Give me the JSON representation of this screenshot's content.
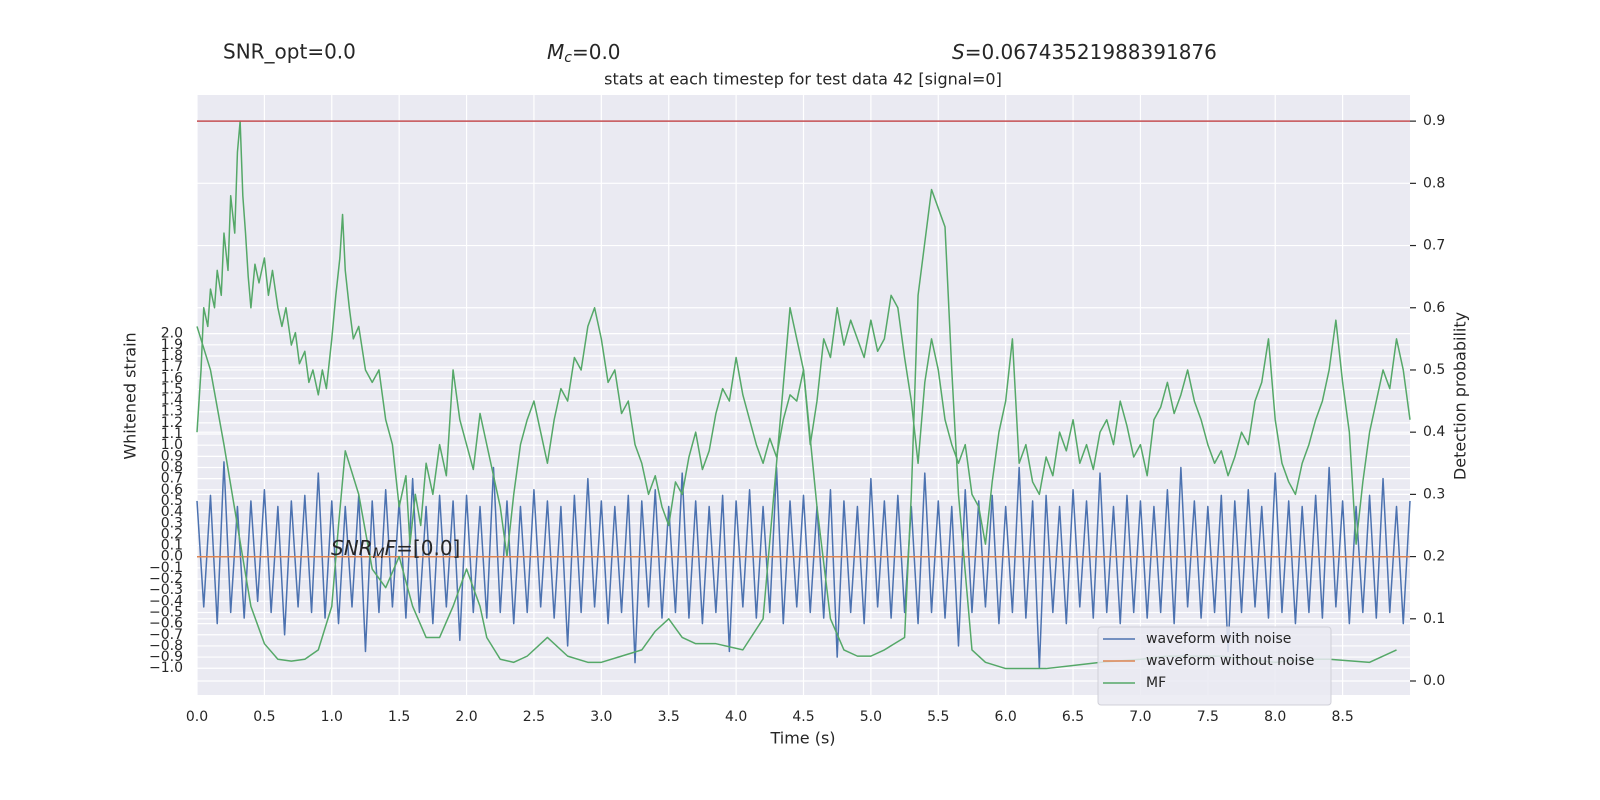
{
  "chart_data": {
    "type": "line",
    "title": "stats at each timestep for test data 42 [signal=0]",
    "annotations": {
      "snr_opt": "SNR_opt=0.0",
      "mc": {
        "italic": "M",
        "sub": "c",
        "text": "=0.0"
      },
      "s": {
        "italic": "S",
        "text": "=0.06743521988391876"
      },
      "snr_mf": {
        "italic": "SNR",
        "sub": "M",
        "italic2": "F",
        "text": "=[0.0]"
      }
    },
    "xlabel": "Time (s)",
    "ylabel": "Whitened strain",
    "y2label": "Detection probability",
    "xlim": [
      0,
      9.0
    ],
    "ylim": [
      -1.24,
      4.14
    ],
    "y2lim": [
      -0.0225,
      0.942
    ],
    "xticks": [
      {
        "value": 0,
        "label": "0.0"
      },
      {
        "value": 0.5,
        "label": "0.5"
      },
      {
        "value": 1,
        "label": "1.0"
      },
      {
        "value": 1.5,
        "label": "1.5"
      },
      {
        "value": 2,
        "label": "2.0"
      },
      {
        "value": 2.5,
        "label": "2.5"
      },
      {
        "value": 3,
        "label": "3.0"
      },
      {
        "value": 3.5,
        "label": "3.5"
      },
      {
        "value": 4,
        "label": "4.0"
      },
      {
        "value": 4.5,
        "label": "4.5"
      },
      {
        "value": 5,
        "label": "5.0"
      },
      {
        "value": 5.5,
        "label": "5.5"
      },
      {
        "value": 6,
        "label": "6.0"
      },
      {
        "value": 6.5,
        "label": "6.5"
      },
      {
        "value": 7,
        "label": "7.0"
      },
      {
        "value": 7.5,
        "label": "7.5"
      },
      {
        "value": 8,
        "label": "8.0"
      },
      {
        "value": 8.5,
        "label": "8.5"
      }
    ],
    "yticks": [
      {
        "value": -1.0,
        "label": "−1.0"
      },
      {
        "value": -0.9,
        "label": "−0.9"
      },
      {
        "value": -0.8,
        "label": "−0.8"
      },
      {
        "value": -0.7,
        "label": "−0.7"
      },
      {
        "value": -0.6,
        "label": "−0.6"
      },
      {
        "value": -0.5,
        "label": "−0.5"
      },
      {
        "value": -0.4,
        "label": "−0.4"
      },
      {
        "value": -0.3,
        "label": "−0.3"
      },
      {
        "value": -0.2,
        "label": "−0.2"
      },
      {
        "value": -0.1,
        "label": "−0.1"
      },
      {
        "value": 0,
        "label": "0.0"
      },
      {
        "value": 0.1,
        "label": "0.1"
      },
      {
        "value": 0.2,
        "label": "0.2"
      },
      {
        "value": 0.3,
        "label": "0.3"
      },
      {
        "value": 0.4,
        "label": "0.4"
      },
      {
        "value": 0.5,
        "label": "0.5"
      },
      {
        "value": 0.6,
        "label": "0.6"
      },
      {
        "value": 0.7,
        "label": "0.7"
      },
      {
        "value": 0.8,
        "label": "0.8"
      },
      {
        "value": 0.9,
        "label": "0.9"
      },
      {
        "value": 1.0,
        "label": "1.0"
      },
      {
        "value": 1.1,
        "label": "1.1"
      },
      {
        "value": 1.2,
        "label": "1.2"
      },
      {
        "value": 1.3,
        "label": "1.3"
      },
      {
        "value": 1.4,
        "label": "1.4"
      },
      {
        "value": 1.5,
        "label": "1.5"
      },
      {
        "value": 1.6,
        "label": "1.6"
      },
      {
        "value": 1.7,
        "label": "1.7"
      },
      {
        "value": 1.8,
        "label": "1.8"
      },
      {
        "value": 1.9,
        "label": "1.9"
      },
      {
        "value": 2.0,
        "label": "2.0"
      }
    ],
    "y2ticks": [
      {
        "value": 0,
        "label": "0.0"
      },
      {
        "value": 0.1,
        "label": "0.1"
      },
      {
        "value": 0.2,
        "label": "0.2"
      },
      {
        "value": 0.3,
        "label": "0.3"
      },
      {
        "value": 0.4,
        "label": "0.4"
      },
      {
        "value": 0.5,
        "label": "0.5"
      },
      {
        "value": 0.6,
        "label": "0.6"
      },
      {
        "value": 0.7,
        "label": "0.7"
      },
      {
        "value": 0.8,
        "label": "0.8"
      },
      {
        "value": 0.9,
        "label": "0.9"
      }
    ],
    "grid": true,
    "legend": "lower right",
    "threshold": {
      "value": 0.9,
      "color": "#c44e52",
      "axis": "y2"
    },
    "series": [
      {
        "name": "waveform with noise",
        "color": "#4c72b0",
        "axis": "y",
        "x": [
          0,
          0.05,
          0.1,
          0.15,
          0.2,
          0.25,
          0.3,
          0.35,
          0.4,
          0.45,
          0.5,
          0.55,
          0.6,
          0.65,
          0.7,
          0.75,
          0.8,
          0.85,
          0.9,
          0.95,
          1.0,
          1.05,
          1.1,
          1.15,
          1.2,
          1.25,
          1.3,
          1.35,
          1.4,
          1.45,
          1.5,
          1.55,
          1.6,
          1.65,
          1.7,
          1.75,
          1.8,
          1.85,
          1.9,
          1.95,
          2.0,
          2.05,
          2.1,
          2.15,
          2.2,
          2.25,
          2.3,
          2.35,
          2.4,
          2.45,
          2.5,
          2.55,
          2.6,
          2.65,
          2.7,
          2.75,
          2.8,
          2.85,
          2.9,
          2.95,
          3.0,
          3.05,
          3.1,
          3.15,
          3.2,
          3.25,
          3.3,
          3.35,
          3.4,
          3.45,
          3.5,
          3.55,
          3.6,
          3.65,
          3.7,
          3.75,
          3.8,
          3.85,
          3.9,
          3.95,
          4.0,
          4.05,
          4.1,
          4.15,
          4.2,
          4.25,
          4.3,
          4.35,
          4.4,
          4.45,
          4.5,
          4.55,
          4.6,
          4.65,
          4.7,
          4.75,
          4.8,
          4.85,
          4.9,
          4.95,
          5.0,
          5.05,
          5.1,
          5.15,
          5.2,
          5.25,
          5.3,
          5.35,
          5.4,
          5.45,
          5.5,
          5.55,
          5.6,
          5.65,
          5.7,
          5.75,
          5.8,
          5.85,
          5.9,
          5.95,
          6.0,
          6.05,
          6.1,
          6.15,
          6.2,
          6.25,
          6.3,
          6.35,
          6.4,
          6.45,
          6.5,
          6.55,
          6.6,
          6.65,
          6.7,
          6.75,
          6.8,
          6.85,
          6.9,
          6.95,
          7.0,
          7.05,
          7.1,
          7.15,
          7.2,
          7.25,
          7.3,
          7.35,
          7.4,
          7.45,
          7.5,
          7.55,
          7.6,
          7.65,
          7.7,
          7.75,
          7.8,
          7.85,
          7.9,
          7.95,
          8.0,
          8.05,
          8.1,
          8.15,
          8.2,
          8.25,
          8.3,
          8.35,
          8.4,
          8.45,
          8.5,
          8.55,
          8.6,
          8.65,
          8.7,
          8.75,
          8.8,
          8.85,
          8.9,
          8.95,
          9.0
        ],
        "values": [
          0.5,
          -0.45,
          0.55,
          -0.6,
          0.85,
          -0.5,
          0.45,
          -0.55,
          0.5,
          -0.4,
          0.6,
          -0.5,
          0.45,
          -0.7,
          0.5,
          -0.45,
          0.55,
          -0.5,
          0.75,
          -0.55,
          0.5,
          -0.6,
          0.45,
          -0.45,
          0.55,
          -0.85,
          0.5,
          -0.5,
          0.6,
          -0.45,
          0.5,
          -0.55,
          0.7,
          -0.5,
          0.45,
          -0.6,
          0.55,
          -0.45,
          0.5,
          -0.75,
          0.55,
          -0.5,
          0.45,
          -0.55,
          0.8,
          -0.5,
          0.5,
          -0.6,
          0.45,
          -0.5,
          0.6,
          -0.45,
          0.5,
          -0.55,
          0.45,
          -0.8,
          0.55,
          -0.5,
          0.7,
          -0.45,
          0.5,
          -0.6,
          0.45,
          -0.5,
          0.55,
          -0.95,
          0.5,
          -0.45,
          0.6,
          -0.55,
          0.45,
          -0.5,
          0.75,
          -0.55,
          0.5,
          -0.6,
          0.45,
          -0.5,
          0.55,
          -0.85,
          0.5,
          -0.45,
          0.6,
          -0.55,
          0.45,
          -0.5,
          0.8,
          -0.6,
          0.5,
          -0.45,
          0.55,
          -0.5,
          0.45,
          -0.55,
          0.6,
          -0.9,
          0.5,
          -0.5,
          0.45,
          -0.6,
          0.7,
          -0.45,
          0.5,
          -0.55,
          0.55,
          -0.5,
          0.45,
          -0.6,
          0.75,
          -0.5,
          0.5,
          -0.55,
          0.45,
          -0.8,
          0.6,
          -0.5,
          0.5,
          -0.45,
          0.55,
          -0.6,
          0.45,
          -0.5,
          0.8,
          -0.55,
          0.5,
          -1.0,
          0.55,
          -0.5,
          0.45,
          -0.6,
          0.6,
          -0.45,
          0.5,
          -0.55,
          0.75,
          -0.5,
          0.45,
          -0.6,
          0.55,
          -0.5,
          0.5,
          -0.55,
          0.45,
          -0.5,
          0.6,
          -0.6,
          0.8,
          -0.45,
          0.5,
          -0.55,
          0.45,
          -0.5,
          0.55,
          -0.85,
          0.5,
          -0.5,
          0.6,
          -0.45,
          0.45,
          -0.55,
          0.75,
          -0.5,
          0.5,
          -0.6,
          0.45,
          -0.5,
          0.55,
          -0.55,
          0.8,
          -0.45,
          0.5,
          -0.6,
          0.45,
          -0.5,
          0.55,
          -0.55,
          0.7,
          -0.5,
          0.45,
          -0.6,
          0.5
        ]
      },
      {
        "name": "waveform without noise",
        "color": "#dd8452",
        "axis": "y",
        "x": [
          0,
          9.0
        ],
        "values": [
          0,
          0
        ]
      },
      {
        "name": "MF",
        "color": "#55a868",
        "axis": "y2",
        "x": [
          0,
          0.1,
          0.2,
          0.3,
          0.4,
          0.5,
          0.6,
          0.7,
          0.8,
          0.9,
          1.0,
          1.05,
          1.1,
          1.2,
          1.3,
          1.4,
          1.5,
          1.6,
          1.7,
          1.8,
          1.9,
          2.0,
          2.1,
          2.15,
          2.25,
          2.35,
          2.45,
          2.6,
          2.75,
          2.9,
          3.0,
          3.15,
          3.3,
          3.4,
          3.5,
          3.6,
          3.7,
          3.85,
          4.05,
          4.2,
          4.3,
          4.4,
          4.5,
          4.6,
          4.7,
          4.8,
          4.9,
          5.0,
          5.1,
          5.25,
          5.3,
          5.35,
          5.45,
          5.55,
          5.6,
          5.65,
          5.75,
          5.85,
          6.0,
          6.3,
          6.5,
          6.7,
          7.0,
          7.2,
          7.6,
          8.0,
          8.2,
          8.4,
          8.7,
          8.9
        ],
        "values": [
          0.57,
          0.5,
          0.38,
          0.25,
          0.12,
          0.06,
          0.035,
          0.032,
          0.035,
          0.05,
          0.12,
          0.25,
          0.37,
          0.3,
          0.18,
          0.15,
          0.2,
          0.12,
          0.07,
          0.07,
          0.12,
          0.18,
          0.12,
          0.07,
          0.035,
          0.03,
          0.04,
          0.07,
          0.04,
          0.03,
          0.03,
          0.04,
          0.05,
          0.08,
          0.1,
          0.07,
          0.06,
          0.06,
          0.05,
          0.1,
          0.35,
          0.6,
          0.5,
          0.28,
          0.1,
          0.05,
          0.04,
          0.04,
          0.05,
          0.07,
          0.3,
          0.62,
          0.79,
          0.73,
          0.5,
          0.3,
          0.05,
          0.03,
          0.02,
          0.02,
          0.025,
          0.03,
          0.035,
          0.04,
          0.04,
          0.03,
          0.035,
          0.035,
          0.03,
          0.05
        ]
      },
      {
        "color": "#55a868",
        "axis": "y2",
        "x": [
          0,
          0.03,
          0.05,
          0.08,
          0.1,
          0.13,
          0.15,
          0.18,
          0.2,
          0.23,
          0.25,
          0.28,
          0.3,
          0.32,
          0.34,
          0.36,
          0.38,
          0.4,
          0.43,
          0.46,
          0.5,
          0.53,
          0.56,
          0.6,
          0.63,
          0.66,
          0.7,
          0.73,
          0.76,
          0.8,
          0.83,
          0.86,
          0.9,
          0.93,
          0.96,
          1.0,
          1.03,
          1.06,
          1.08,
          1.1,
          1.13,
          1.16,
          1.2,
          1.25,
          1.3,
          1.35,
          1.4,
          1.45,
          1.5,
          1.55,
          1.58,
          1.62,
          1.66,
          1.7,
          1.75,
          1.8,
          1.85,
          1.9,
          1.95,
          2.0,
          2.05,
          2.1,
          2.15,
          2.2,
          2.25,
          2.3,
          2.35,
          2.4,
          2.45,
          2.5,
          2.55,
          2.6,
          2.65,
          2.7,
          2.75,
          2.8,
          2.85,
          2.9,
          2.95,
          3.0,
          3.05,
          3.1,
          3.15,
          3.2,
          3.25,
          3.3,
          3.35,
          3.4,
          3.45,
          3.5,
          3.55,
          3.6,
          3.65,
          3.7,
          3.75,
          3.8,
          3.85,
          3.9,
          3.95,
          4.0,
          4.05,
          4.1,
          4.15,
          4.2,
          4.25,
          4.3,
          4.35,
          4.4,
          4.45,
          4.5,
          4.55,
          4.6,
          4.65,
          4.7,
          4.75,
          4.8,
          4.85,
          4.9,
          4.95,
          5.0,
          5.05,
          5.1,
          5.15,
          5.2,
          5.25,
          5.3,
          5.35,
          5.4,
          5.45,
          5.5,
          5.55,
          5.6,
          5.65,
          5.7,
          5.75,
          5.8,
          5.85,
          5.9,
          5.95,
          6.0,
          6.05,
          6.1,
          6.15,
          6.2,
          6.25,
          6.3,
          6.35,
          6.4,
          6.45,
          6.5,
          6.55,
          6.6,
          6.65,
          6.7,
          6.75,
          6.8,
          6.85,
          6.9,
          6.95,
          7.0,
          7.05,
          7.1,
          7.15,
          7.2,
          7.25,
          7.3,
          7.35,
          7.4,
          7.45,
          7.5,
          7.55,
          7.6,
          7.65,
          7.7,
          7.75,
          7.8,
          7.85,
          7.9,
          7.95,
          8.0,
          8.05,
          8.1,
          8.15,
          8.2,
          8.25,
          8.3,
          8.35,
          8.4,
          8.45,
          8.5,
          8.55,
          8.6,
          8.65,
          8.7,
          8.75,
          8.8,
          8.85,
          8.9,
          8.95,
          9.0
        ],
        "values": [
          0.4,
          0.5,
          0.6,
          0.57,
          0.63,
          0.6,
          0.66,
          0.62,
          0.72,
          0.66,
          0.78,
          0.72,
          0.85,
          0.9,
          0.78,
          0.72,
          0.65,
          0.6,
          0.67,
          0.64,
          0.68,
          0.62,
          0.66,
          0.6,
          0.57,
          0.6,
          0.54,
          0.56,
          0.51,
          0.53,
          0.48,
          0.5,
          0.46,
          0.5,
          0.47,
          0.55,
          0.62,
          0.68,
          0.75,
          0.66,
          0.6,
          0.55,
          0.57,
          0.5,
          0.48,
          0.5,
          0.42,
          0.38,
          0.28,
          0.33,
          0.22,
          0.3,
          0.25,
          0.35,
          0.3,
          0.38,
          0.33,
          0.5,
          0.42,
          0.38,
          0.34,
          0.43,
          0.38,
          0.33,
          0.28,
          0.2,
          0.3,
          0.38,
          0.42,
          0.45,
          0.4,
          0.35,
          0.42,
          0.47,
          0.45,
          0.52,
          0.5,
          0.57,
          0.6,
          0.55,
          0.48,
          0.5,
          0.43,
          0.45,
          0.38,
          0.35,
          0.3,
          0.33,
          0.28,
          0.25,
          0.32,
          0.3,
          0.36,
          0.4,
          0.34,
          0.37,
          0.43,
          0.47,
          0.45,
          0.52,
          0.46,
          0.42,
          0.38,
          0.35,
          0.39,
          0.36,
          0.42,
          0.46,
          0.45,
          0.5,
          0.38,
          0.45,
          0.55,
          0.52,
          0.6,
          0.54,
          0.58,
          0.55,
          0.52,
          0.58,
          0.53,
          0.55,
          0.62,
          0.6,
          0.52,
          0.45,
          0.35,
          0.48,
          0.55,
          0.5,
          0.42,
          0.38,
          0.35,
          0.38,
          0.3,
          0.28,
          0.22,
          0.32,
          0.4,
          0.45,
          0.55,
          0.35,
          0.38,
          0.32,
          0.3,
          0.36,
          0.33,
          0.4,
          0.37,
          0.42,
          0.35,
          0.38,
          0.34,
          0.4,
          0.42,
          0.38,
          0.45,
          0.41,
          0.36,
          0.38,
          0.33,
          0.42,
          0.44,
          0.48,
          0.43,
          0.46,
          0.5,
          0.45,
          0.42,
          0.38,
          0.35,
          0.37,
          0.33,
          0.36,
          0.4,
          0.38,
          0.45,
          0.48,
          0.55,
          0.42,
          0.35,
          0.32,
          0.3,
          0.35,
          0.38,
          0.42,
          0.45,
          0.5,
          0.58,
          0.48,
          0.4,
          0.22,
          0.32,
          0.4,
          0.45,
          0.5,
          0.47,
          0.55,
          0.5,
          0.42
        ]
      }
    ]
  }
}
